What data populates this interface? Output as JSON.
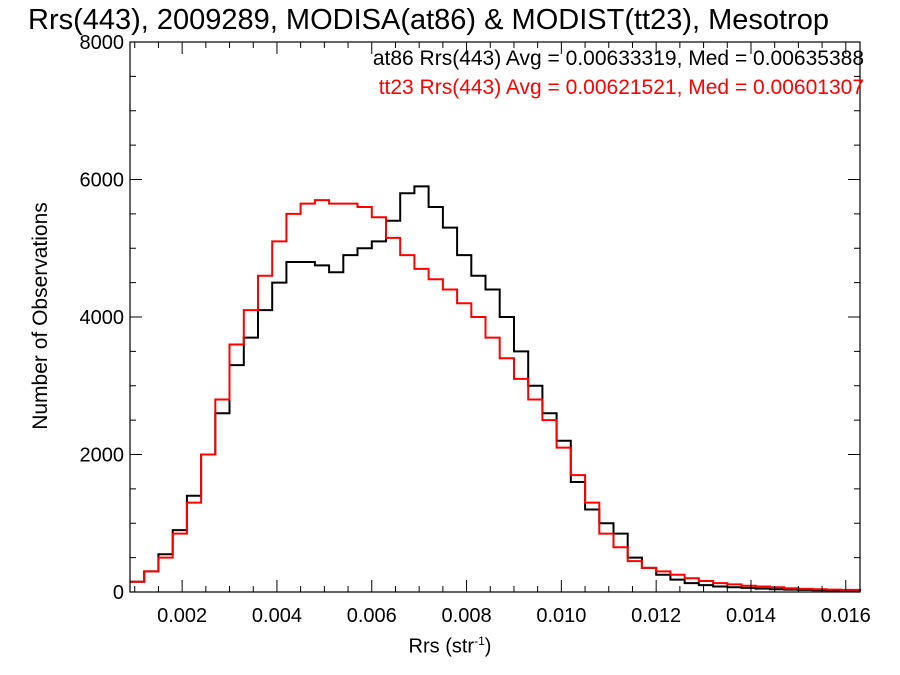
{
  "chart_data": {
    "type": "line",
    "title": "Rrs(443), 2009289, MODISA(at86) & MODIST(tt23), Mesotrop",
    "xlabel": "Rrs (str",
    "xlabel_sup": "-1",
    "xlabel_close": ")",
    "ylabel": "Number of Observations",
    "xlim": [
      0.0009,
      0.0163
    ],
    "ylim": [
      0,
      8000
    ],
    "xticks": [
      "0.002",
      "0.004",
      "0.006",
      "0.008",
      "0.010",
      "0.012",
      "0.014",
      "0.016"
    ],
    "yticks": [
      "0",
      "2000",
      "4000",
      "6000",
      "8000"
    ],
    "legend": [
      {
        "text": "at86 Rrs(443) Avg = 0.00633319, Med = 0.00635388",
        "color": "#000000"
      },
      {
        "text": "tt23 Rrs(443) Avg = 0.00621521, Med = 0.00601307",
        "color": "#ff0000"
      }
    ],
    "series": [
      {
        "color": "#000000",
        "x": [
          0.0009,
          0.0012,
          0.0015,
          0.0018,
          0.0021,
          0.0024,
          0.0027,
          0.003,
          0.0033,
          0.0036,
          0.0039,
          0.0042,
          0.0045,
          0.0048,
          0.0051,
          0.0054,
          0.0057,
          0.006,
          0.0063,
          0.0066,
          0.0069,
          0.0072,
          0.0075,
          0.0078,
          0.0081,
          0.0084,
          0.0087,
          0.009,
          0.0093,
          0.0096,
          0.0099,
          0.0102,
          0.0105,
          0.0108,
          0.0111,
          0.0114,
          0.0117,
          0.012,
          0.0123,
          0.0126,
          0.0129,
          0.0132,
          0.0135,
          0.0138,
          0.0141,
          0.0144,
          0.0147,
          0.015,
          0.0153,
          0.0156,
          0.0159,
          0.0163
        ],
        "y": [
          150,
          300,
          550,
          900,
          1400,
          2000,
          2600,
          3300,
          3700,
          4100,
          4500,
          4800,
          4800,
          4750,
          4650,
          4900,
          5000,
          5100,
          5400,
          5800,
          5900,
          5600,
          5300,
          4900,
          4600,
          4400,
          4000,
          3500,
          3000,
          2600,
          2200,
          1600,
          1200,
          1000,
          850,
          500,
          350,
          250,
          180,
          130,
          100,
          80,
          70,
          60,
          50,
          40,
          35,
          30,
          25,
          20,
          15,
          10
        ]
      },
      {
        "color": "#ff0000",
        "x": [
          0.0009,
          0.0012,
          0.0015,
          0.0018,
          0.0021,
          0.0024,
          0.0027,
          0.003,
          0.0033,
          0.0036,
          0.0039,
          0.0042,
          0.0045,
          0.0048,
          0.0051,
          0.0054,
          0.0057,
          0.006,
          0.0063,
          0.0066,
          0.0069,
          0.0072,
          0.0075,
          0.0078,
          0.0081,
          0.0084,
          0.0087,
          0.009,
          0.0093,
          0.0096,
          0.0099,
          0.0102,
          0.0105,
          0.0108,
          0.0111,
          0.0114,
          0.0117,
          0.012,
          0.0123,
          0.0126,
          0.0129,
          0.0132,
          0.0135,
          0.0138,
          0.0141,
          0.0144,
          0.0147,
          0.015,
          0.0153,
          0.0156,
          0.0159,
          0.0163
        ],
        "y": [
          150,
          300,
          500,
          850,
          1300,
          2000,
          2800,
          3600,
          4100,
          4600,
          5100,
          5500,
          5650,
          5700,
          5650,
          5650,
          5600,
          5450,
          5150,
          4900,
          4700,
          4550,
          4400,
          4200,
          4000,
          3700,
          3400,
          3100,
          2800,
          2500,
          2100,
          1700,
          1300,
          850,
          650,
          450,
          350,
          300,
          250,
          200,
          160,
          130,
          110,
          90,
          80,
          70,
          55,
          45,
          40,
          35,
          30,
          25
        ]
      }
    ]
  }
}
